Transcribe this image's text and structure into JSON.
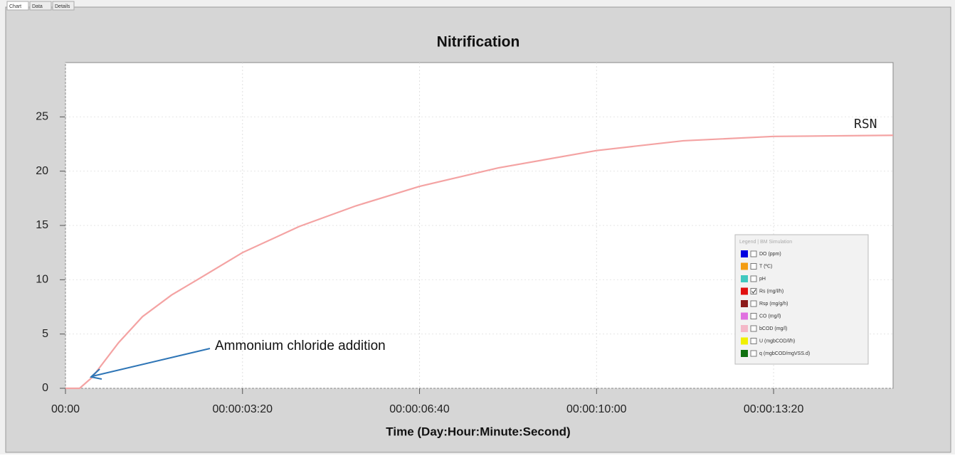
{
  "tabs": [
    "Chart",
    "Data",
    "Details"
  ],
  "chart_data": {
    "type": "line",
    "title": "Nitrification",
    "x_label": "Time (Day:Hour:Minute:Second)",
    "x": [
      0,
      16,
      30,
      60,
      87,
      120,
      151,
      200,
      264,
      328,
      400,
      489,
      600,
      698,
      800,
      935
    ],
    "series": [
      {
        "name": "RSN",
        "color": "#f4a3a3",
        "values": [
          0,
          0,
          1,
          4.2,
          6.6,
          8.6,
          10.1,
          12.5,
          14.9,
          16.8,
          18.6,
          20.3,
          21.9,
          22.8,
          23.2,
          23.3
        ]
      }
    ],
    "xlim": [
      0,
      935
    ],
    "xticks": [
      {
        "value": 0,
        "label": "00:00"
      },
      {
        "value": 200,
        "label": "00:00:03:20"
      },
      {
        "value": 400,
        "label": "00:00:06:40"
      },
      {
        "value": 600,
        "label": "00:00:10:00"
      },
      {
        "value": 800,
        "label": "00:00:13:20"
      }
    ],
    "ylim": [
      0,
      30
    ],
    "yticks": [
      0,
      5,
      10,
      15,
      20,
      25
    ],
    "grid": true,
    "annotations": [
      {
        "text": "Ammonium chloride addition"
      }
    ]
  },
  "legend": {
    "title": "Legend | BM Simulation",
    "items": [
      {
        "label": "DO (ppm)",
        "color": "#0000e0",
        "checked": false
      },
      {
        "label": "T (ºC)",
        "color": "#f39c12",
        "checked": false
      },
      {
        "label": "pH",
        "color": "#40c8c0",
        "checked": false
      },
      {
        "label": "Rs (mg/l/h)",
        "color": "#e01010",
        "checked": true
      },
      {
        "label": "Rsp (mg/g/h)",
        "color": "#8b1a1a",
        "checked": false
      },
      {
        "label": "CO (mg/l)",
        "color": "#e070e0",
        "checked": false
      },
      {
        "label": "bCOD (mg/l)",
        "color": "#f4b8c8",
        "checked": false
      },
      {
        "label": "U (mgbCOD/l/h)",
        "color": "#f0f000",
        "checked": false
      },
      {
        "label": "q (mgbCOD/mgVSS.d)",
        "color": "#107010",
        "checked": false
      }
    ]
  }
}
